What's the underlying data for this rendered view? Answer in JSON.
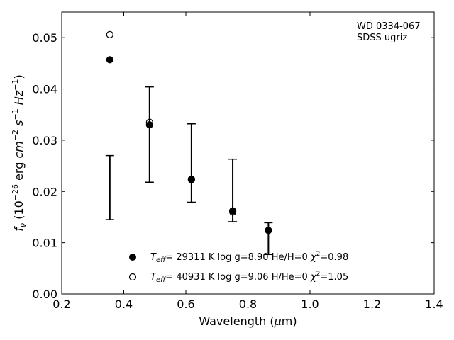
{
  "chart_data": {
    "type": "scatter",
    "xlabel": "Wavelength (μm)",
    "ylabel": "f_ν (10^-26 erg cm^-2 s^-1 Hz^-1)",
    "xlim": [
      0.2,
      1.4
    ],
    "ylim": [
      0.0,
      0.055
    ],
    "x_ticks": [
      "0.2",
      "0.4",
      "0.6",
      "0.8",
      "1.0",
      "1.2",
      "1.4"
    ],
    "y_ticks": [
      "0.00",
      "0.01",
      "0.02",
      "0.03",
      "0.04",
      "0.05"
    ],
    "grid": false,
    "legend_position": "bottom-center",
    "annotation": [
      "WD 0334-067",
      "SDSS ugriz"
    ],
    "observed": {
      "x": [
        0.355,
        0.483,
        0.618,
        0.751,
        0.866
      ],
      "y": [
        0.0208,
        0.0311,
        0.0255,
        0.0202,
        0.0108
      ],
      "yerr_low": [
        0.0145,
        0.0218,
        0.0179,
        0.0141,
        0.0077
      ],
      "yerr_high": [
        0.027,
        0.0404,
        0.0332,
        0.0263,
        0.0139
      ]
    },
    "series": [
      {
        "name": "T_eff= 29311 K  log g=8.90  He/H=0  χ²=0.98",
        "marker": "filled-circle",
        "x": [
          0.355,
          0.483,
          0.618,
          0.751,
          0.866
        ],
        "y": [
          0.0457,
          0.033,
          0.0224,
          0.0162,
          0.0124
        ]
      },
      {
        "name": "T_eff= 40931 K  log g=9.06  H/He=0  χ²=1.05",
        "marker": "open-circle",
        "x": [
          0.355,
          0.483,
          0.618,
          0.751,
          0.866
        ],
        "y": [
          0.0506,
          0.0335,
          0.0223,
          0.016,
          0.0124
        ]
      }
    ]
  },
  "legend": {
    "items": [
      {
        "teff": "29311 K",
        "logg": "log g=8.90",
        "comp": "He/H=0",
        "chi": "=0.98"
      },
      {
        "teff": "40931 K",
        "logg": "log g=9.06",
        "comp": "H/He=0",
        "chi": "=1.05"
      }
    ]
  }
}
